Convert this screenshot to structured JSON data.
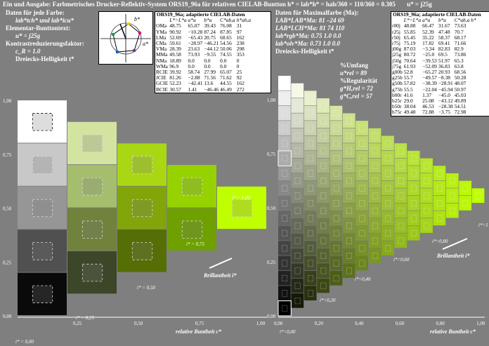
{
  "header": {
    "title_line": "Ein und Ausgabe: Farbmetrisches Drucker-Reflektiv-System ORS19_96a für relativen CIELAB-Buntton h* = lab*h* = h",
    "title_suffix": "ab/360 = 110/360 = 0.305",
    "title_tail": "u* = j25g"
  },
  "left_info": {
    "l1": "Daten für jede Farbe:",
    "l2": "lab*tch* und lab*icu*",
    "l3": "Elementar-Bunttontext:",
    "l4": "u* = j25g",
    "l5": "Kontrastreduzierungsfaktor:",
    "l6": "c_R = 1.0",
    "l7": "Dreiecks-Helligkeit t*"
  },
  "mid_info": {
    "l1": "Daten für Maximalfarbe (Ma):",
    "l2": "LAB*LAB*Ma: 81 –24 69",
    "l3": "LAB*LCH*Ma: 81 74 110",
    "l4": "lab*rgb*Ma: 0.75 1.0 0.0",
    "l5": "lab*olv*Ma: 0.73 1.0 0.0",
    "l6": "Dreiecks-Helligkeit t*",
    "umfang": "%Umfang",
    "umfang_val": "u*rel = 89",
    "regular": "%Regularität",
    "reg1": "g*H,rel = 72",
    "reg2": "g*C,rel = 57"
  },
  "table1": {
    "title": "ORS19_96a; adaptierte CIELAB-Daten",
    "headers": [
      "",
      "L*=L*a",
      "a*a",
      "b*a",
      "C*ab,a",
      "h*ab,a"
    ],
    "rows": [
      [
        "OMa",
        "48.75",
        "65.07",
        "39.43",
        "76.08",
        "31"
      ],
      [
        "YMa",
        "90.92",
        "−10.28",
        "87.24",
        "87.85",
        "97"
      ],
      [
        "LMa",
        "52.69",
        "−65.43",
        "20.75",
        "68.65",
        "162"
      ],
      [
        "CMa",
        "59.61",
        "−28.97",
        "−46.21",
        "54.56",
        "238"
      ],
      [
        "VMa",
        "28.39",
        "23.63",
        "−44.12",
        "50.06",
        "298"
      ],
      [
        "MMa",
        "49.58",
        "73.93",
        "−9.55",
        "74.55",
        "353"
      ],
      [
        "NMa",
        "18.89",
        "0.0",
        "0.0",
        "0.0",
        "0"
      ],
      [
        "WMa",
        "96.9",
        "0.0",
        "0.0",
        "0.0",
        "0"
      ],
      [
        "RCIE",
        "39.92",
        "58.74",
        "27.99",
        "65.07",
        "25"
      ],
      [
        "JCIE",
        "81.26",
        "−2.88",
        "71.56",
        "71.62",
        "92"
      ],
      [
        "GCIE",
        "52.23",
        "−42.41",
        "13.6",
        "44.55",
        "162"
      ],
      [
        "BCIE",
        "30.57",
        "1.41",
        "−46.46",
        "46.49",
        "272"
      ]
    ]
  },
  "table2": {
    "title": "ORS19_96a; adaptierte CIELAB-Daten",
    "headers": [
      "",
      "L*=L*a",
      "a*a",
      "b*a",
      "C*ab,a",
      "h*"
    ],
    "rows": [
      [
        "r00j",
        "48.88",
        "66.47",
        "31.67",
        "73.63",
        ""
      ],
      [
        "r25j",
        "55.85",
        "52.39",
        "47.48",
        "70.7",
        ""
      ],
      [
        "r50j",
        "65.45",
        "35.22",
        "58.37",
        "68.17",
        ""
      ],
      [
        "r75j",
        "75.19",
        "17.82",
        "69.41",
        "71.66",
        ""
      ],
      [
        "j00g",
        "87.03",
        "−3.34",
        "82.83",
        "82.9",
        ""
      ],
      [
        "j25g",
        "80.72",
        "−25.0",
        "69.5",
        "73.86",
        ""
      ],
      [
        "j50g",
        "70.64",
        "−39.53",
        "51.97",
        "65.3",
        ""
      ],
      [
        "j75g",
        "61.93",
        "−52.09",
        "36.83",
        "63.8",
        ""
      ],
      [
        "g00b",
        "52.8",
        "−65.27",
        "20.93",
        "68.56",
        ""
      ],
      [
        "g25b",
        "55.7",
        "−49.57",
        "−8.38",
        "50.28",
        ""
      ],
      [
        "g50b",
        "57.82",
        "−38.39",
        "−28.91",
        "48.07",
        ""
      ],
      [
        "g75b",
        "55.5",
        "−22.04",
        "−45.94",
        "50.97",
        ""
      ],
      [
        "b00r",
        "41.6",
        "1.37",
        "−45.0",
        "45.03",
        ""
      ],
      [
        "b25r",
        "29.0",
        "25.08",
        "−43.12",
        "49.89",
        ""
      ],
      [
        "b50r",
        "38.04",
        "46.53",
        "−28.38",
        "54.51",
        ""
      ],
      [
        "b75r",
        "49.48",
        "72.88",
        "−3.75",
        "72.98",
        ""
      ]
    ]
  },
  "hue_icon": {
    "a_label": "a*",
    "b_label": "b*"
  },
  "left_chart": {
    "y_ticks": [
      "0,00",
      "0,25",
      "0,50",
      "0,75",
      "1,00"
    ],
    "x_ticks": [
      "0,25",
      "0,50",
      "0,75",
      "1,00"
    ],
    "x_label": "relative Buntheit c*",
    "i_labels": [
      "i* = 0,00",
      "i* = 0,25",
      "i* = 0,50",
      "i* = 0,75",
      "i* = 1,00"
    ],
    "brill_label": "Brillantheit i*"
  },
  "right_chart": {
    "x_ticks": [
      "0,00",
      "0,20",
      "0,40",
      "0,60",
      "0,80",
      "1,00"
    ],
    "y_ticks": [
      "0,00",
      "0,25",
      "0,50",
      "0,75",
      "1,00"
    ],
    "x_label": "relative Buntheit c*",
    "i_labels": [
      "i*=0,00",
      "i*=0,20",
      "i*=0,40",
      "i*=0,60",
      "i*=0,80",
      "i*=1"
    ],
    "brill_label": "Brillantheit i*"
  },
  "colors": {
    "background": "#7f7f7f",
    "maximal_color": "#bfff00",
    "black": "#000000",
    "white": "#ffffff"
  }
}
